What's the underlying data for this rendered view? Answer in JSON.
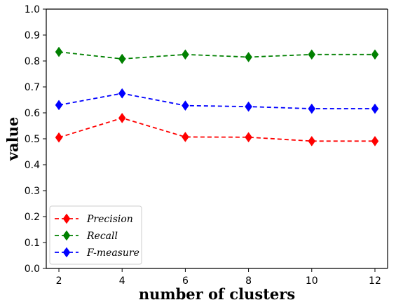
{
  "chart_data": {
    "type": "line",
    "title": "",
    "xlabel": "number of clusters",
    "ylabel": "value",
    "x": [
      2,
      4,
      6,
      8,
      10,
      12
    ],
    "xticks": [
      2,
      4,
      6,
      8,
      10,
      12
    ],
    "xlim": [
      1.6,
      12.4
    ],
    "yticks": [
      0.0,
      0.1,
      0.2,
      0.3,
      0.4,
      0.5,
      0.6,
      0.7,
      0.8,
      0.9,
      1.0
    ],
    "ytick_labels": [
      "0.0",
      "0.1",
      "0.2",
      "0.3",
      "0.4",
      "0.5",
      "0.6",
      "0.7",
      "0.8",
      "0.9",
      "1.0"
    ],
    "ylim": [
      0.0,
      1.0
    ],
    "grid": false,
    "legend_position": "bottom-left",
    "series": [
      {
        "name": "Precision",
        "color": "#ff0000",
        "marker": "diamond",
        "linestyle": "dashed",
        "values": [
          0.505,
          0.58,
          0.507,
          0.506,
          0.491,
          0.491
        ]
      },
      {
        "name": "Recall",
        "color": "#008000",
        "marker": "diamond",
        "linestyle": "dashed",
        "values": [
          0.835,
          0.808,
          0.825,
          0.815,
          0.825,
          0.825
        ]
      },
      {
        "name": "F-measure",
        "color": "#0000ff",
        "marker": "diamond",
        "linestyle": "dashed",
        "values": [
          0.63,
          0.675,
          0.628,
          0.624,
          0.616,
          0.616
        ]
      }
    ]
  }
}
